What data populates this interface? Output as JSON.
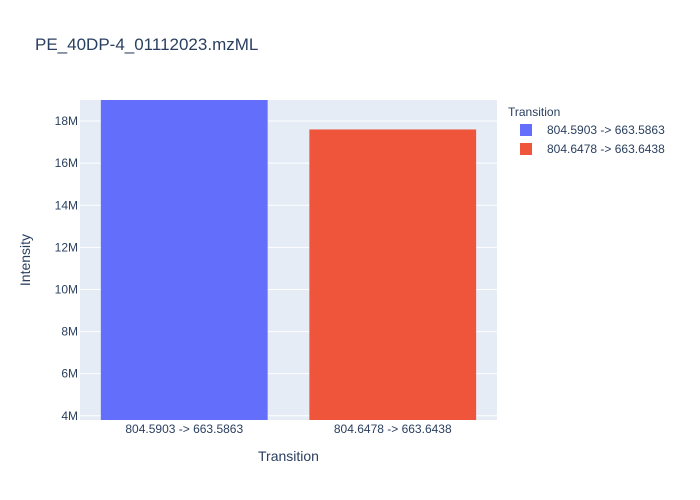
{
  "chart_data": {
    "type": "bar",
    "title": "PE_40DP-4_01112023.mzML",
    "xlabel": "Transition",
    "ylabel": "Intensity",
    "categories": [
      "804.5903 -> 663.5863",
      "804.6478 -> 663.6438"
    ],
    "values": [
      19000000,
      17600000
    ],
    "ylim": [
      3800000,
      19000000
    ],
    "yticks": [
      4000000,
      6000000,
      8000000,
      10000000,
      12000000,
      14000000,
      16000000,
      18000000
    ],
    "ytick_labels": [
      "4M",
      "6M",
      "8M",
      "10M",
      "12M",
      "14M",
      "16M",
      "18M"
    ],
    "colors": [
      "#636efa",
      "#ef553b"
    ],
    "grid": true,
    "legend": {
      "title": "Transition",
      "position": "right",
      "entries": [
        "804.5903 -> 663.5863",
        "804.6478 -> 663.6438"
      ]
    }
  }
}
